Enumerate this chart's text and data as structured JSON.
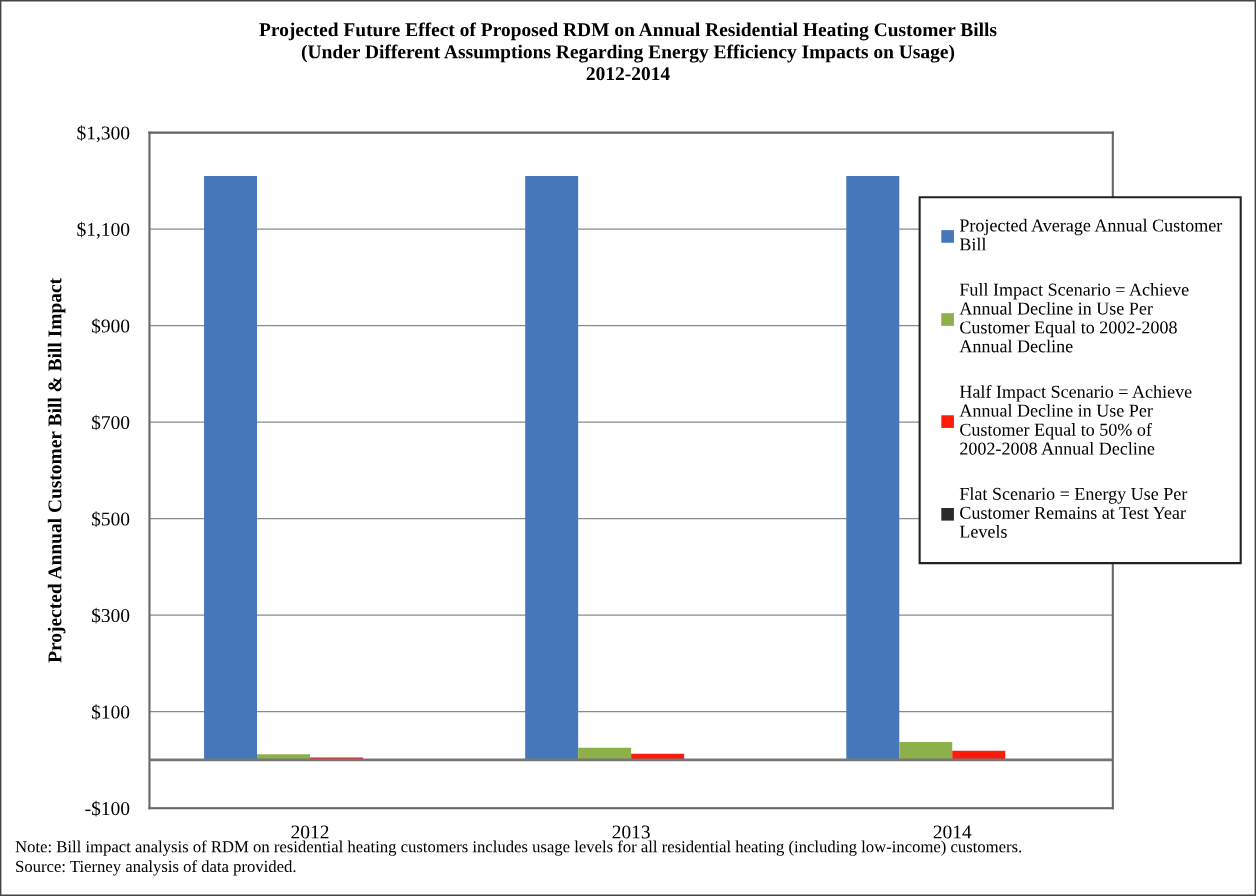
{
  "chart_data": {
    "type": "bar",
    "title": "Projected Future Effect of Proposed RDM on Annual Residential Heating Customer Bills\n(Under Different Assumptions Regarding Energy Efficiency Impacts on Usage)\n2012-2014",
    "ylabel": "Projected Annual Customer Bill & Bill Impact",
    "categories": [
      "2012",
      "2013",
      "2014"
    ],
    "series": [
      {
        "name": "Projected Average Annual Customer Bill",
        "color": "#4677bb",
        "values": [
          1210,
          1210,
          1210
        ]
      },
      {
        "name": "Full Impact Scenario = Achieve Annual Decline in Use Per Customer Equal to 2002-2008 Annual Decline",
        "color": "#8db04a",
        "values": [
          12,
          25,
          37
        ]
      },
      {
        "name": "Half Impact Scenario = Achieve Annual Decline in Use Per Customer Equal to 50% of 2002-2008 Annual Decline",
        "color": "#ff1a0a",
        "values": [
          5,
          13,
          19
        ]
      },
      {
        "name": "Flat Scenario = Energy Use Per Customer Remains at Test Year Levels",
        "color": "#2b2b2b",
        "values": [
          0,
          0,
          0
        ]
      }
    ],
    "ylim": [
      -100,
      1300
    ],
    "yticks": [
      {
        "value": -100,
        "label": "-$100"
      },
      {
        "value": 100,
        "label": "$100"
      },
      {
        "value": 300,
        "label": "$300"
      },
      {
        "value": 500,
        "label": "$500"
      },
      {
        "value": 700,
        "label": "$700"
      },
      {
        "value": 900,
        "label": "$900"
      },
      {
        "value": 1100,
        "label": "$1,100"
      },
      {
        "value": 1300,
        "label": "$1,300"
      }
    ],
    "grid": "y",
    "legend": "right",
    "annotations": [
      "Note: Bill impact analysis of RDM on residential heating customers includes usage levels for all residential heating (including low-income) customers.",
      "Source: Tierney analysis of data provided."
    ]
  }
}
